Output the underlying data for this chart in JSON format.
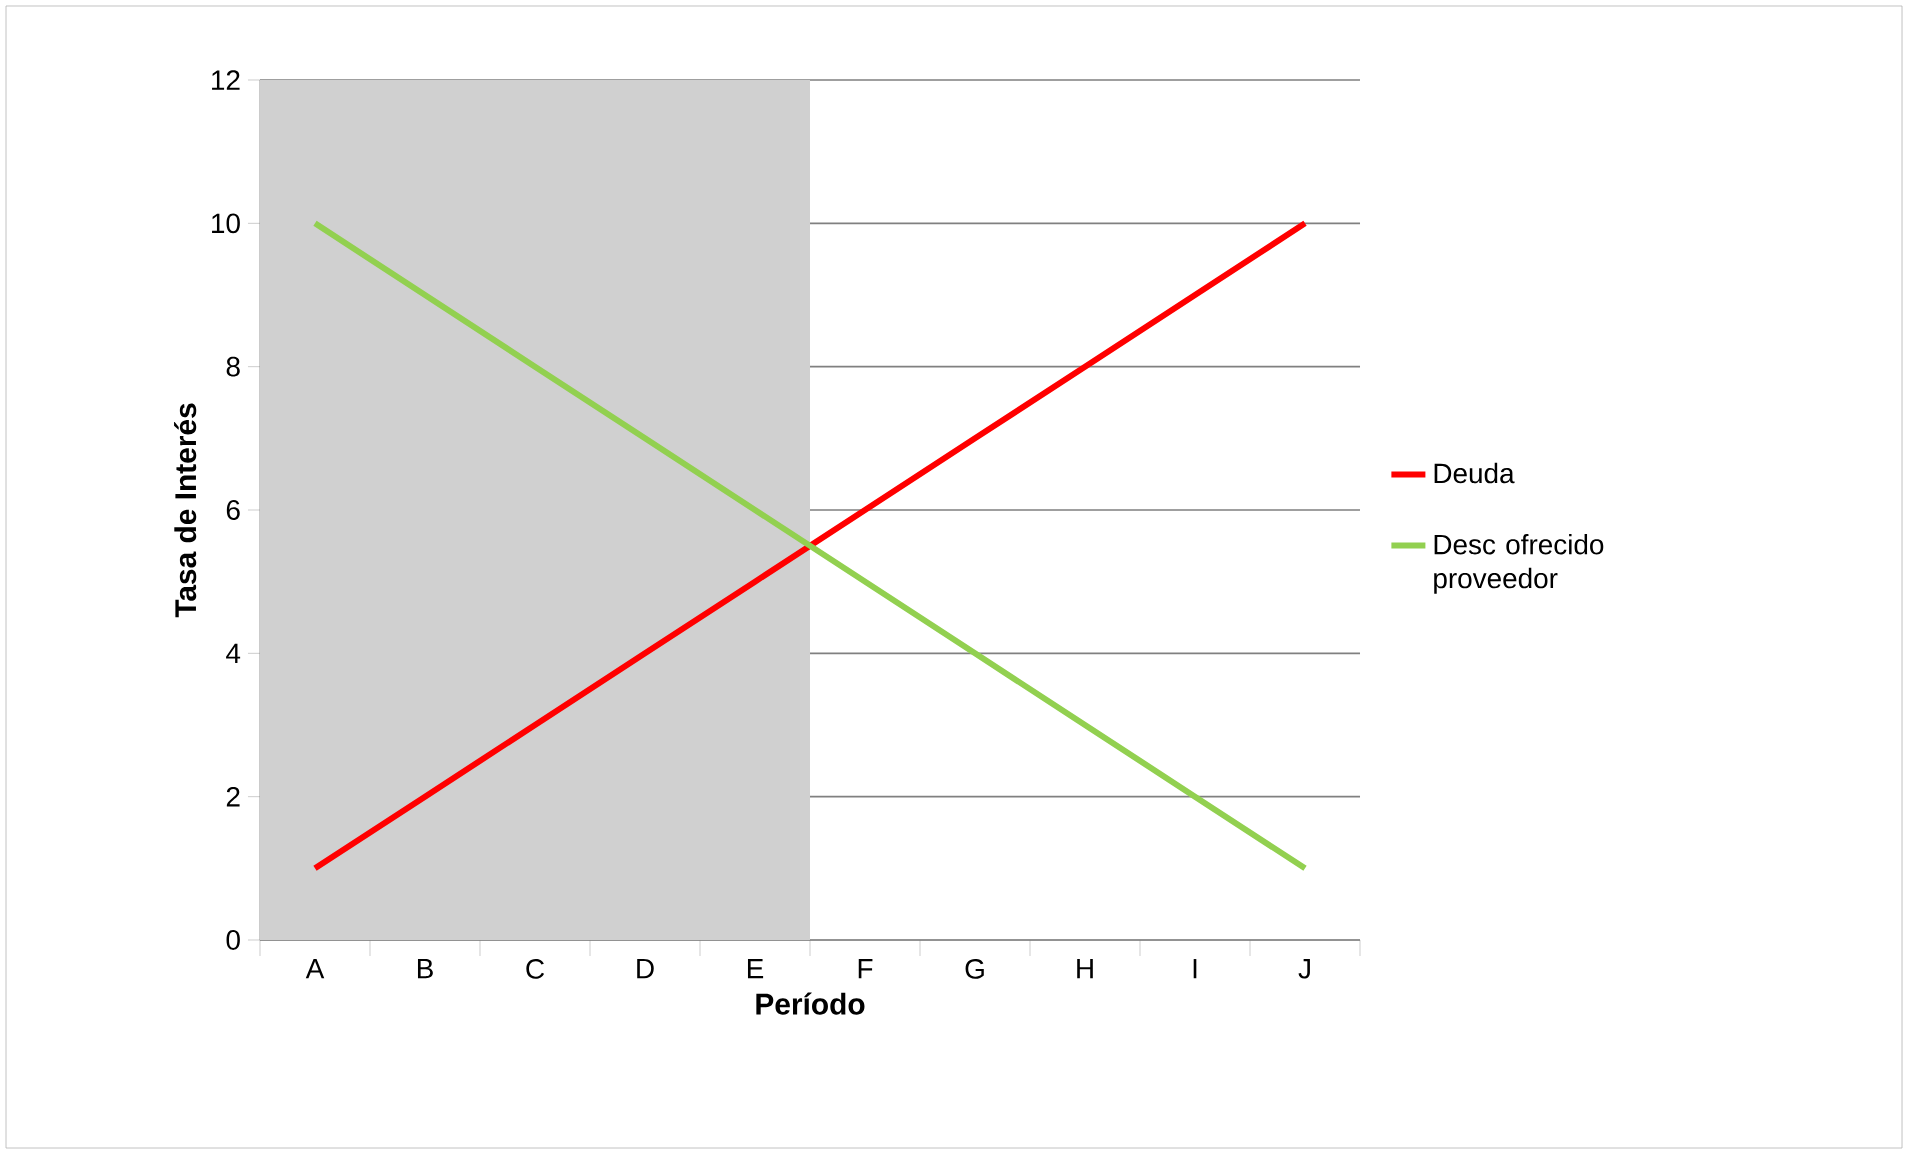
{
  "chart_data": {
    "type": "line",
    "xlabel": "Período",
    "ylabel": "Tasa de Interés",
    "categories": [
      "A",
      "B",
      "C",
      "D",
      "E",
      "F",
      "G",
      "H",
      "I",
      "J"
    ],
    "series": [
      {
        "name": "Deuda",
        "color": "#ff0000",
        "values": [
          1,
          2,
          3,
          4,
          5,
          6,
          7,
          8,
          9,
          10
        ]
      },
      {
        "name": "Desc ofrecido proveedor",
        "color": "#92d050",
        "values": [
          10,
          9,
          8,
          7,
          6,
          5,
          4,
          3,
          2,
          1
        ]
      }
    ],
    "ylim": [
      0,
      12
    ],
    "yticks": [
      0,
      2,
      4,
      6,
      8,
      10,
      12
    ],
    "grid": "y",
    "legend": "right",
    "bands": [
      {
        "axis": "x",
        "from": "A",
        "to": "E",
        "color": "#d0d0d0"
      }
    ]
  }
}
